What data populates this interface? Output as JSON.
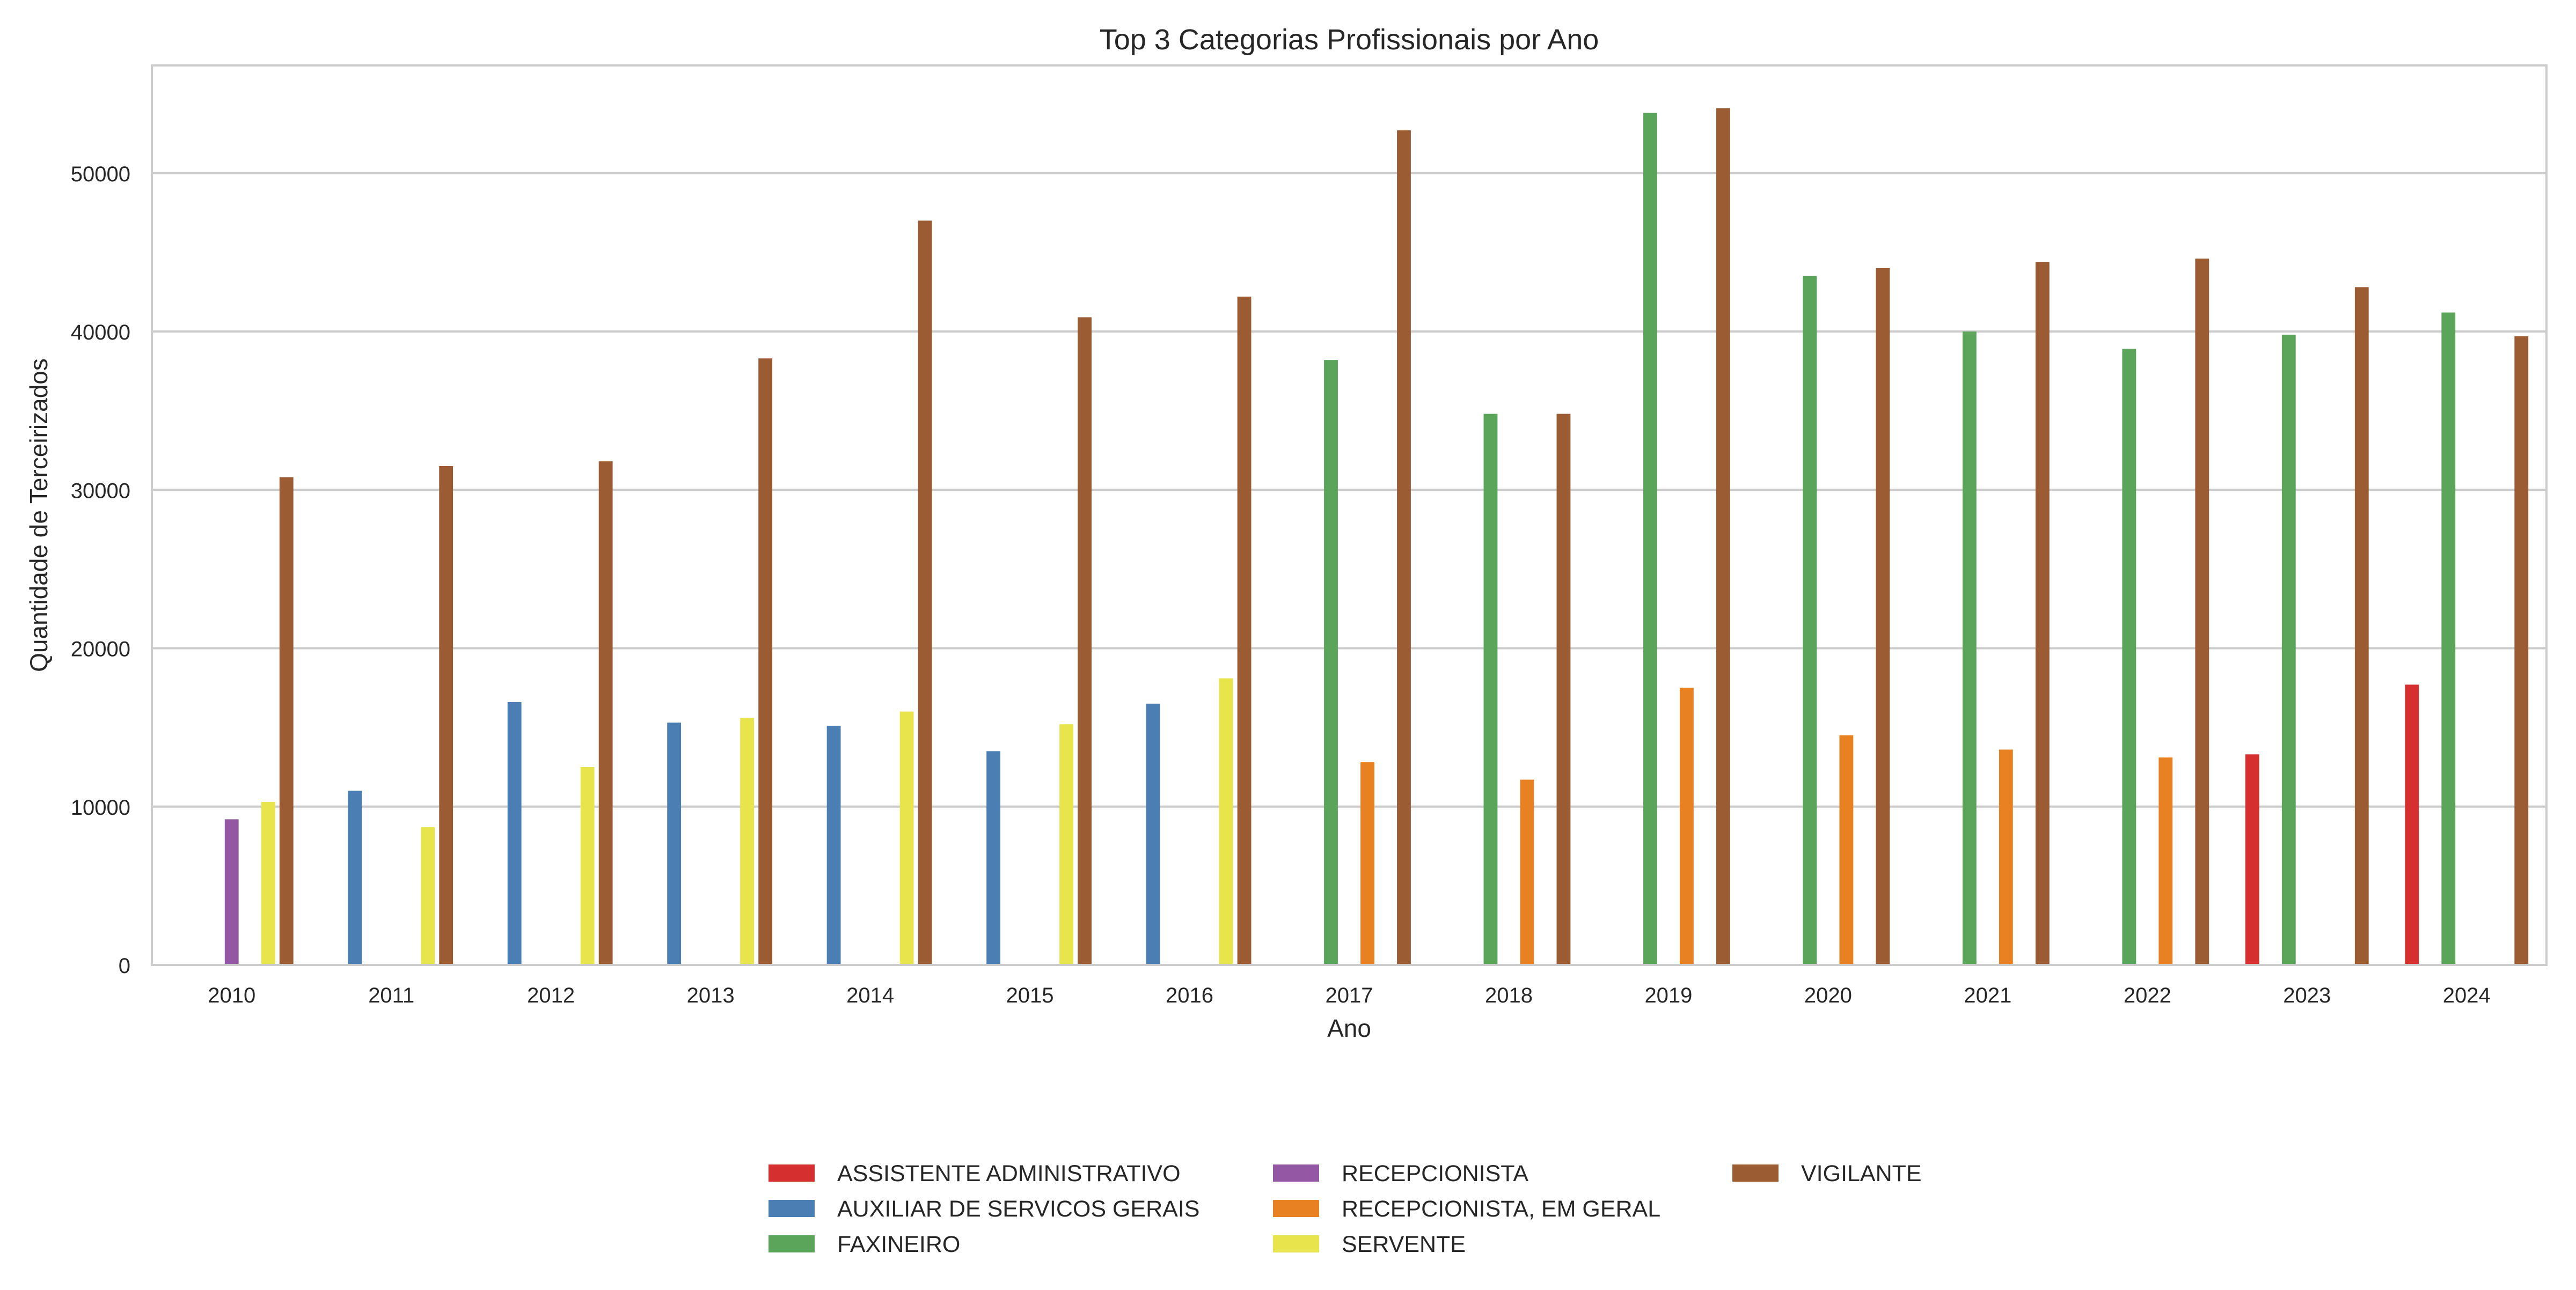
{
  "chart_data": {
    "type": "bar",
    "title": "Top 3 Categorias Profissionais por Ano",
    "xlabel": "Ano",
    "ylabel": "Quantidade de Terceirizados",
    "ylim": [
      0,
      56800
    ],
    "yticks": [
      0,
      10000,
      20000,
      30000,
      40000,
      50000
    ],
    "grid": "horizontal",
    "legend_position": "bottom-center",
    "categories": [
      "2010",
      "2011",
      "2012",
      "2013",
      "2014",
      "2015",
      "2016",
      "2017",
      "2018",
      "2019",
      "2020",
      "2021",
      "2022",
      "2023",
      "2024"
    ],
    "series": [
      {
        "name": "ASSISTENTE ADMINISTRATIVO",
        "color": "#d62f30",
        "values": [
          null,
          null,
          null,
          null,
          null,
          null,
          null,
          null,
          null,
          null,
          null,
          null,
          null,
          13300,
          17700
        ]
      },
      {
        "name": "AUXILIAR DE SERVICOS GERAIS",
        "color": "#4b7fb4",
        "values": [
          null,
          11000,
          16600,
          15300,
          15100,
          13500,
          16500,
          null,
          null,
          null,
          null,
          null,
          null,
          null,
          null
        ]
      },
      {
        "name": "FAXINEIRO",
        "color": "#5aa55a",
        "values": [
          null,
          null,
          null,
          null,
          null,
          null,
          null,
          38200,
          34800,
          53800,
          43500,
          40000,
          38900,
          39800,
          41200
        ]
      },
      {
        "name": "RECEPCIONISTA",
        "color": "#9357a3",
        "values": [
          9200,
          null,
          null,
          null,
          null,
          null,
          null,
          null,
          null,
          null,
          null,
          null,
          null,
          null,
          null
        ]
      },
      {
        "name": "RECEPCIONISTA, EM GERAL",
        "color": "#e88122",
        "values": [
          null,
          null,
          null,
          null,
          null,
          null,
          null,
          12800,
          11700,
          17500,
          14500,
          13600,
          13100,
          null,
          null
        ]
      },
      {
        "name": "SERVENTE",
        "color": "#e8e44b",
        "values": [
          10300,
          8700,
          12500,
          15600,
          16000,
          15200,
          18100,
          null,
          null,
          null,
          null,
          null,
          null,
          null,
          null
        ]
      },
      {
        "name": "VIGILANTE",
        "color": "#9b5b33",
        "values": [
          30800,
          31500,
          31800,
          38300,
          47000,
          40900,
          42200,
          52700,
          34800,
          54100,
          44000,
          44400,
          44600,
          42800,
          39700
        ]
      }
    ]
  }
}
